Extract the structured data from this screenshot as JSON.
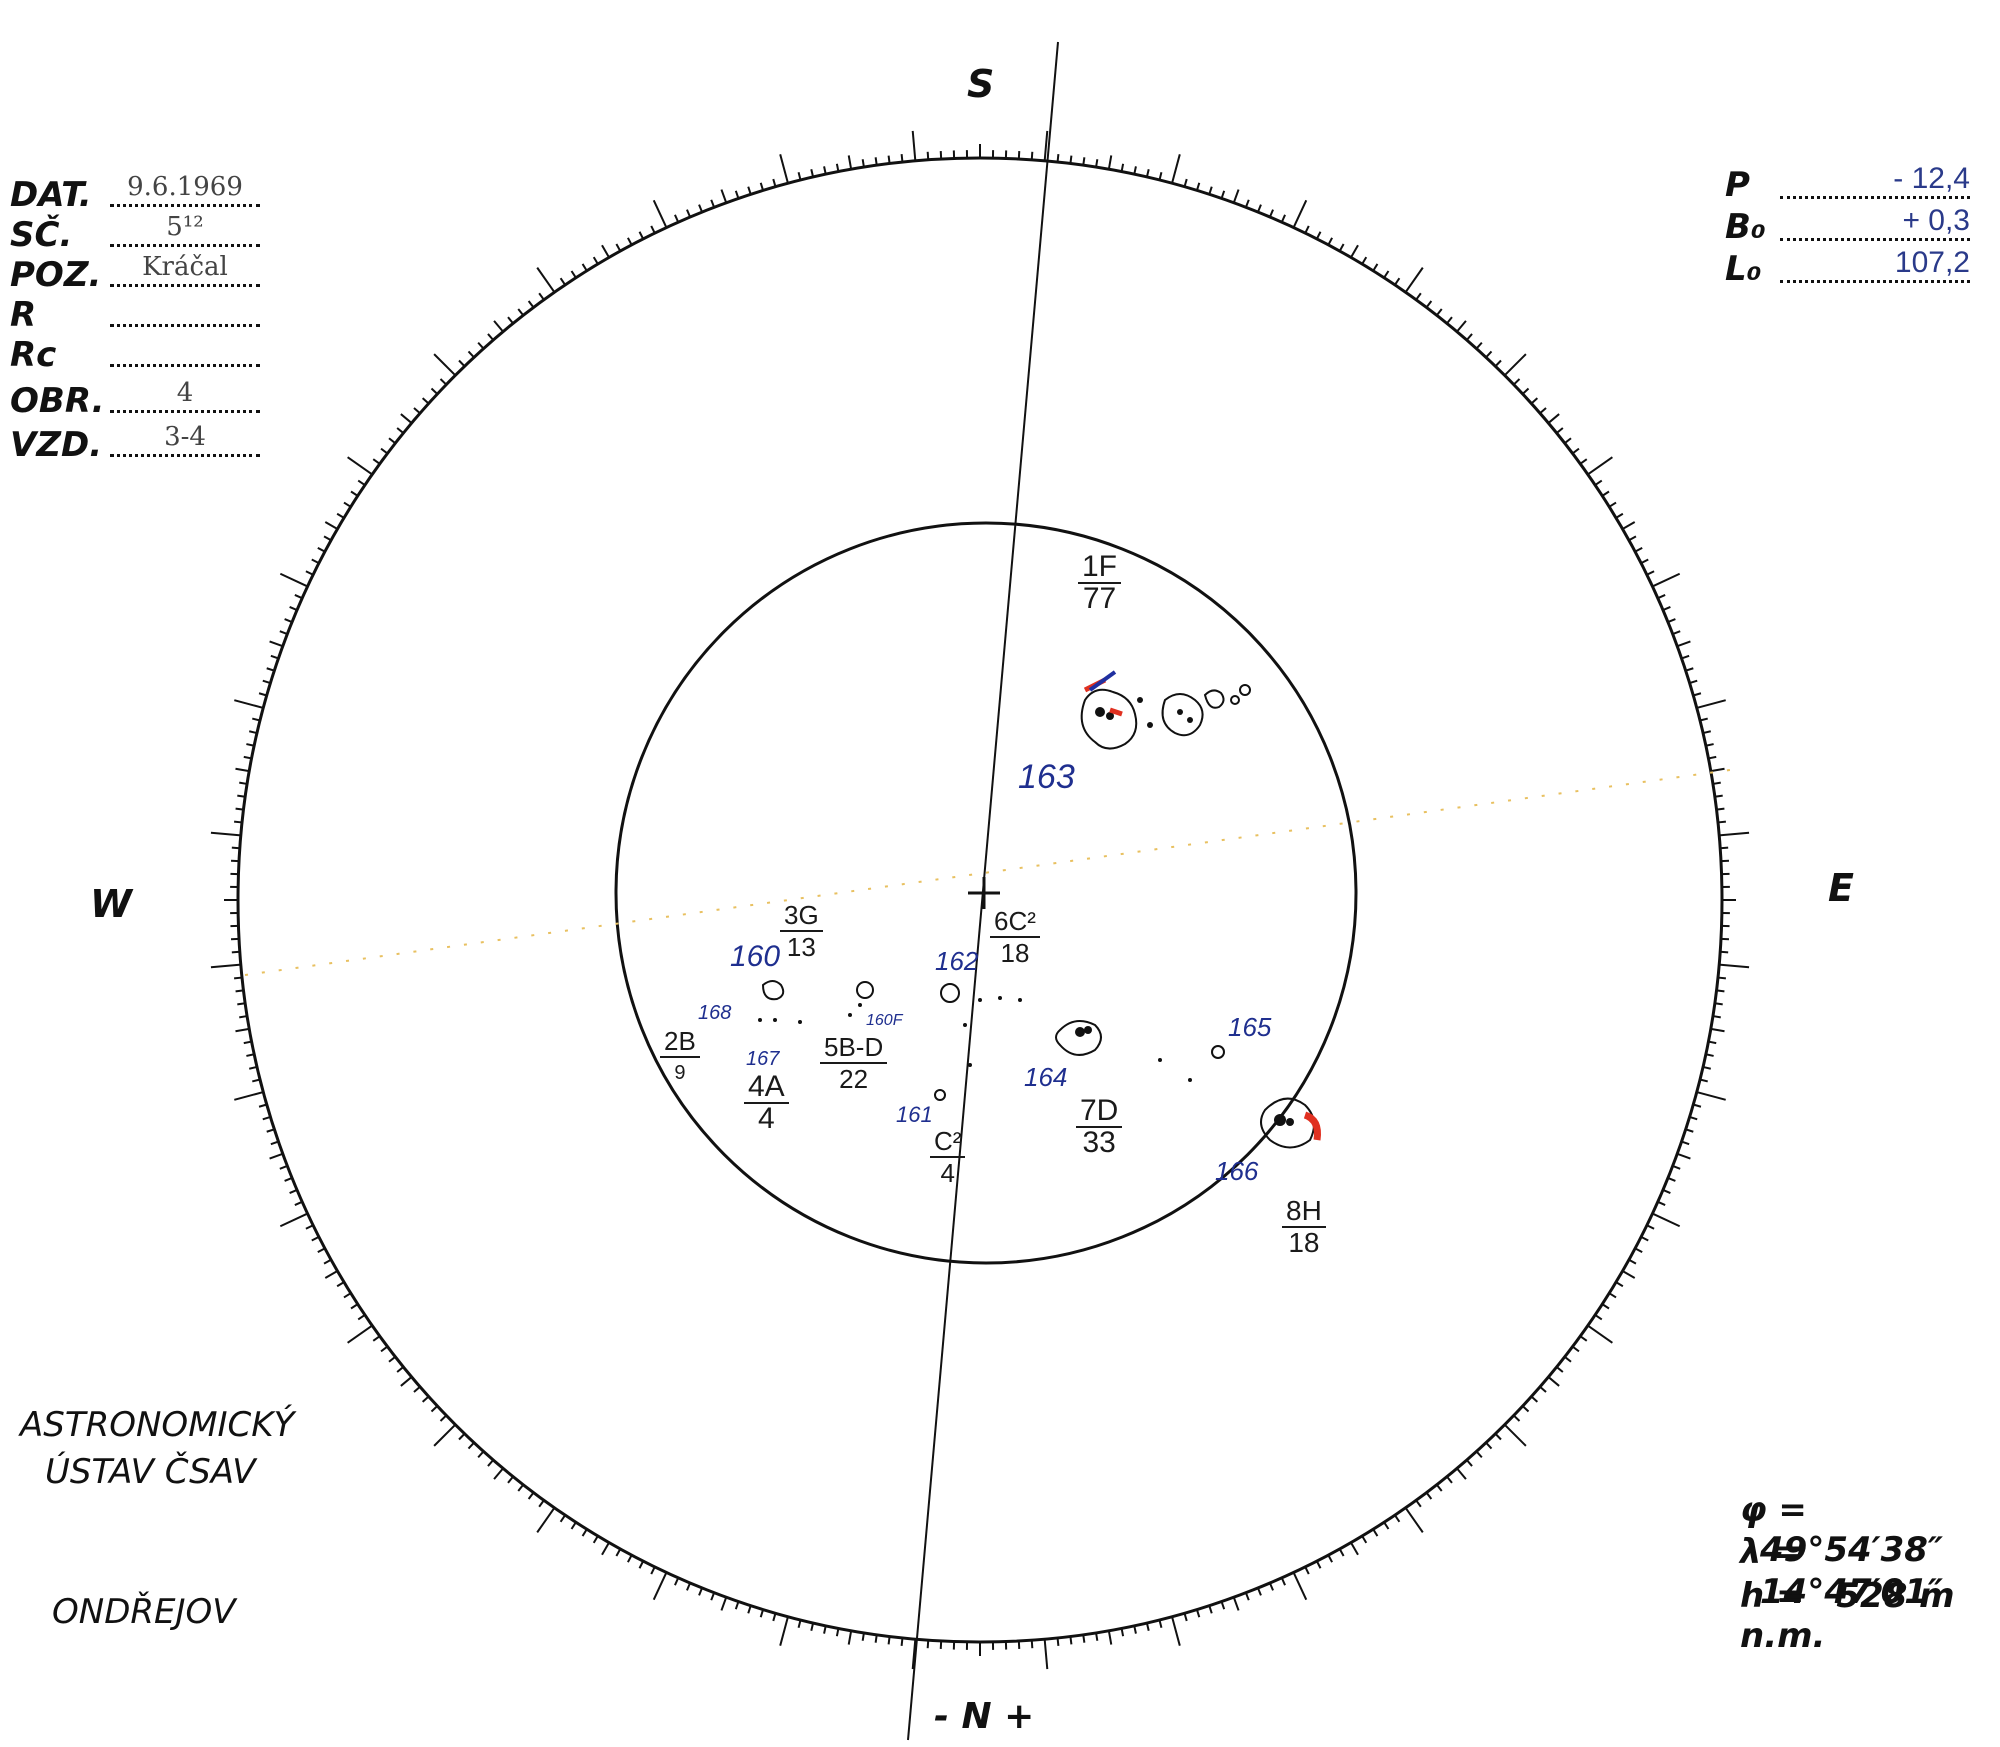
{
  "compass": {
    "south": "S",
    "north": "- N +",
    "west": "W",
    "east": "E"
  },
  "left_fields": [
    {
      "label": "DAT.",
      "value": "9.6.1969"
    },
    {
      "label": "SČ.",
      "value": "5¹²"
    },
    {
      "label": "POZ.",
      "value": "Kráčal"
    },
    {
      "label": "R",
      "value": ""
    },
    {
      "label": "Rc",
      "value": ""
    },
    {
      "label": "OBR.",
      "value": "4"
    },
    {
      "label": "VZD.",
      "value": "3-4"
    }
  ],
  "right_fields": [
    {
      "label": "P",
      "value": "- 12,4"
    },
    {
      "label": "B₀",
      "value": "+ 0,3"
    },
    {
      "label": "L₀",
      "value": "107,2"
    }
  ],
  "institute": {
    "line1": "ASTRONOMICKÝ",
    "line2": "ÚSTAV ČSAV",
    "place": "ONDŘEJOV"
  },
  "coordinates": [
    {
      "symbol": "φ =",
      "value": "49°54′38″"
    },
    {
      "symbol": "λ =",
      "value": "14°47′01″"
    },
    {
      "symbol": "h =",
      "value": "528 m n.m."
    }
  ],
  "groups": {
    "g1": {
      "class": "1F",
      "count": "77",
      "number": "163"
    },
    "g2": {
      "class": "2B",
      "count": "9",
      "number": "168"
    },
    "g3": {
      "class": "3G",
      "count": "13",
      "number": "160"
    },
    "g4": {
      "class": "4A",
      "count": "4",
      "number": "167"
    },
    "g5": {
      "class": "5B-D",
      "count": "22",
      "number": "160F"
    },
    "g6": {
      "class": "6C²",
      "count": "18",
      "number": "162"
    },
    "g7": {
      "class": "7D",
      "count": "33",
      "number": "164"
    },
    "g8": {
      "class": "8H",
      "count": "18",
      "number": "166"
    },
    "gc": {
      "class": "C²",
      "count": "4",
      "number": "161"
    },
    "g165": {
      "number": "165"
    }
  }
}
